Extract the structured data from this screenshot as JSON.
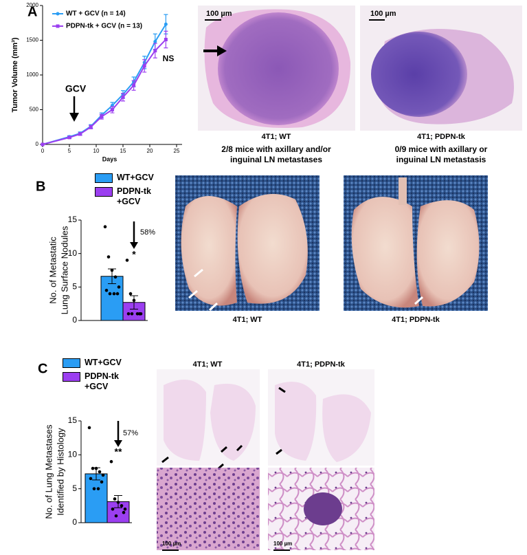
{
  "panel_labels": [
    "A",
    "B",
    "C"
  ],
  "chart_data": [
    {
      "type": "line",
      "x_label": "Days",
      "y_label": "Tumor Volume (mm³)",
      "x": [
        0,
        5,
        7,
        9,
        11,
        13,
        15,
        17,
        19,
        21,
        23
      ],
      "xlim": [
        0,
        25
      ],
      "xticks": [
        0,
        5,
        10,
        15,
        20,
        25
      ],
      "ylim": [
        0,
        2000
      ],
      "yticks": [
        0,
        500,
        1000,
        1500,
        2000
      ],
      "series": [
        {
          "name": "WT + GCV (n = 14)",
          "color": "#2a9df4",
          "marker": "circle",
          "values": [
            0,
            110,
            160,
            260,
            420,
            560,
            720,
            900,
            1180,
            1480,
            1730
          ],
          "errors": [
            0,
            15,
            20,
            25,
            35,
            45,
            55,
            70,
            90,
            110,
            140
          ]
        },
        {
          "name": "PDPN-tk + GCV (n = 13)",
          "color": "#9b3ff0",
          "marker": "square",
          "values": [
            0,
            100,
            150,
            250,
            400,
            500,
            680,
            850,
            1130,
            1350,
            1510
          ],
          "errors": [
            0,
            15,
            20,
            25,
            35,
            45,
            55,
            70,
            90,
            105,
            120
          ]
        }
      ],
      "annotations": [
        "GCV",
        "NS"
      ]
    },
    {
      "type": "bar",
      "y_label": [
        "No. of Metastatic",
        "Lung Surface Nodules"
      ],
      "ylim": [
        0,
        15
      ],
      "yticks": [
        0,
        5,
        10,
        15
      ],
      "series": [
        {
          "name": "WT+GCV",
          "color": "#2a9df4",
          "values": [
            6.6
          ],
          "errors": [
            1.1
          ],
          "points": [
            14,
            9.5,
            7.5,
            6.5,
            5,
            4.5,
            4,
            4,
            4
          ]
        },
        {
          "name": "PDPN-tk +GCV",
          "color": "#9b3ff0",
          "values": [
            2.7
          ],
          "errors": [
            1.0
          ],
          "points": [
            9,
            4,
            3,
            1,
            1,
            1,
            1,
            1
          ]
        }
      ],
      "annotations": [
        "58%",
        "*"
      ]
    },
    {
      "type": "bar",
      "y_label": [
        "No. of Lung Metastases",
        "Identified by Histology"
      ],
      "ylim": [
        0,
        15
      ],
      "yticks": [
        0,
        5,
        10,
        15
      ],
      "series": [
        {
          "name": "WT+GCV",
          "color": "#2a9df4",
          "values": [
            7.2
          ],
          "errors": [
            0.9
          ],
          "points": [
            14,
            8,
            8,
            7.5,
            7,
            6.5,
            6,
            5,
            5
          ]
        },
        {
          "name": "PDPN-tk +GCV",
          "color": "#9b3ff0",
          "values": [
            3.1
          ],
          "errors": [
            0.9
          ],
          "points": [
            9,
            3.5,
            3,
            2.5,
            2,
            2,
            1.5,
            1
          ]
        }
      ],
      "annotations": [
        "57%",
        "**"
      ]
    }
  ],
  "images": {
    "a": {
      "scale": [
        "100 µm",
        "100 µm"
      ],
      "captions": [
        [
          "4T1; WT",
          "2/8 mice with axillary and/or",
          "inguinal LN metastases"
        ],
        [
          "4T1; PDPN-tk",
          "0/9 mice with axillary or",
          "inguinal LN metastasis"
        ]
      ]
    },
    "b": {
      "captions": [
        "4T1; WT",
        "4T1; PDPN-tk"
      ]
    },
    "c": {
      "titles": [
        "4T1; WT",
        "4T1; PDPN-tk"
      ],
      "scale": [
        "100 µm",
        "100 µm"
      ]
    }
  }
}
